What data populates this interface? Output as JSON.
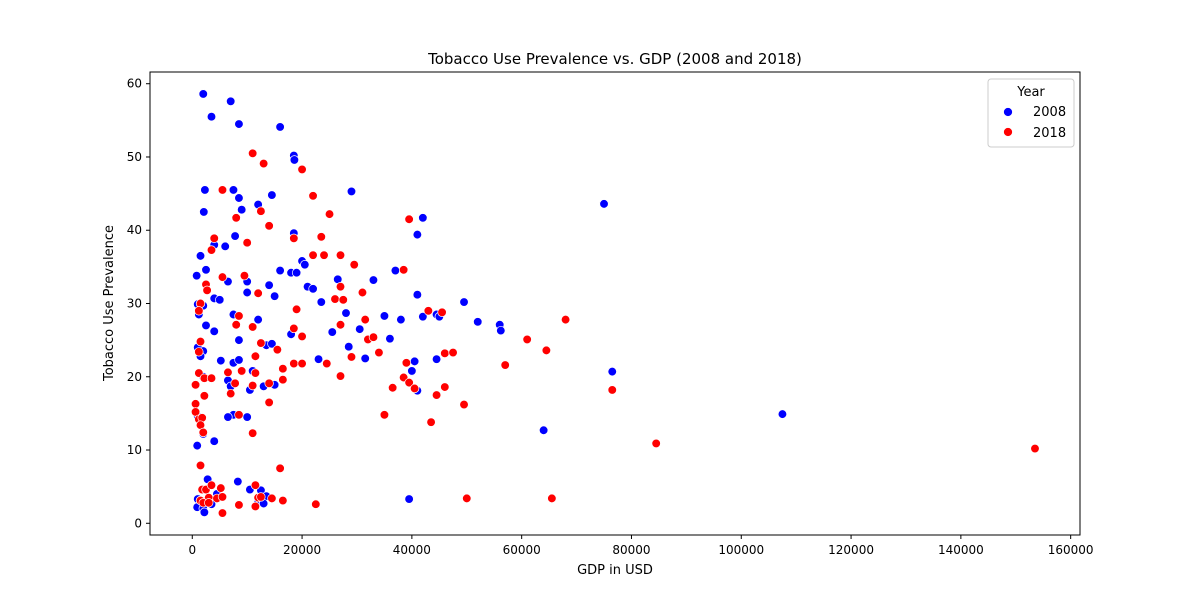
{
  "chart_data": {
    "type": "scatter",
    "title": "Tobacco Use Prevalence vs. GDP (2008 and 2018)",
    "xlabel": "GDP in USD",
    "ylabel": "Tobacco Use Prevalence",
    "xlim": [
      -7700,
      161700
    ],
    "ylim": [
      -1.6,
      61.6
    ],
    "xticks": [
      0,
      20000,
      40000,
      60000,
      80000,
      100000,
      120000,
      140000,
      160000
    ],
    "yticks": [
      0,
      10,
      20,
      30,
      40,
      50,
      60
    ],
    "grid": false,
    "legend": {
      "title": "Year",
      "placement": "top-right"
    },
    "series": [
      {
        "name": "2008",
        "color": "#0000ff",
        "points": [
          [
            2000,
            58.6
          ],
          [
            7000,
            57.6
          ],
          [
            3500,
            55.5
          ],
          [
            8500,
            54.5
          ],
          [
            16000,
            54.1
          ],
          [
            18500,
            50.2
          ],
          [
            18600,
            49.6
          ],
          [
            2300,
            45.5
          ],
          [
            7500,
            45.5
          ],
          [
            14500,
            44.8
          ],
          [
            8500,
            44.4
          ],
          [
            29000,
            45.3
          ],
          [
            12000,
            43.5
          ],
          [
            2100,
            42.5
          ],
          [
            9000,
            42.8
          ],
          [
            75000,
            43.6
          ],
          [
            42000,
            41.7
          ],
          [
            41000,
            39.4
          ],
          [
            18500,
            39.6
          ],
          [
            7800,
            39.2
          ],
          [
            4000,
            38.0
          ],
          [
            6000,
            37.8
          ],
          [
            1500,
            36.5
          ],
          [
            20000,
            35.8
          ],
          [
            20500,
            35.3
          ],
          [
            2500,
            34.6
          ],
          [
            16000,
            34.5
          ],
          [
            37000,
            34.5
          ],
          [
            800,
            33.8
          ],
          [
            6500,
            33.0
          ],
          [
            26500,
            33.3
          ],
          [
            33000,
            33.2
          ],
          [
            18000,
            34.2
          ],
          [
            19000,
            34.2
          ],
          [
            10000,
            33.0
          ],
          [
            14000,
            32.5
          ],
          [
            21000,
            32.3
          ],
          [
            22000,
            32.0
          ],
          [
            10000,
            31.5
          ],
          [
            15000,
            31.0
          ],
          [
            41000,
            31.2
          ],
          [
            4000,
            30.7
          ],
          [
            5000,
            30.5
          ],
          [
            23500,
            30.2
          ],
          [
            49500,
            30.2
          ],
          [
            1000,
            29.9
          ],
          [
            2000,
            29.7
          ],
          [
            1200,
            28.5
          ],
          [
            7500,
            28.5
          ],
          [
            28000,
            28.7
          ],
          [
            35000,
            28.3
          ],
          [
            38000,
            27.8
          ],
          [
            42000,
            28.2
          ],
          [
            44500,
            28.5
          ],
          [
            45000,
            28.2
          ],
          [
            52000,
            27.5
          ],
          [
            56000,
            27.1
          ],
          [
            56200,
            26.3
          ],
          [
            2500,
            27.0
          ],
          [
            4000,
            26.2
          ],
          [
            12000,
            27.8
          ],
          [
            18000,
            25.8
          ],
          [
            25500,
            26.1
          ],
          [
            30500,
            26.5
          ],
          [
            36000,
            25.2
          ],
          [
            8500,
            25.0
          ],
          [
            13500,
            24.3
          ],
          [
            1000,
            24.0
          ],
          [
            2000,
            23.5
          ],
          [
            5200,
            22.2
          ],
          [
            7500,
            21.9
          ],
          [
            8500,
            22.3
          ],
          [
            14500,
            24.5
          ],
          [
            23000,
            22.4
          ],
          [
            28500,
            24.1
          ],
          [
            31500,
            22.5
          ],
          [
            40500,
            22.1
          ],
          [
            44500,
            22.4
          ],
          [
            76500,
            20.7
          ],
          [
            1500,
            22.8
          ],
          [
            11000,
            20.8
          ],
          [
            2000,
            20.0
          ],
          [
            6500,
            19.5
          ],
          [
            7000,
            18.7
          ],
          [
            13000,
            18.7
          ],
          [
            15000,
            18.9
          ],
          [
            10500,
            18.2
          ],
          [
            40000,
            20.8
          ],
          [
            41000,
            18.1
          ],
          [
            7500,
            14.8
          ],
          [
            10000,
            14.5
          ],
          [
            6500,
            14.5
          ],
          [
            1000,
            14.6
          ],
          [
            900,
            10.6
          ],
          [
            4000,
            11.2
          ],
          [
            64000,
            12.7
          ],
          [
            107500,
            14.9
          ],
          [
            2000,
            12.2
          ],
          [
            2800,
            6.0
          ],
          [
            8300,
            5.7
          ],
          [
            10500,
            4.6
          ],
          [
            12500,
            4.5
          ],
          [
            1000,
            3.3
          ],
          [
            1500,
            3.1
          ],
          [
            4500,
            4.0
          ],
          [
            12000,
            3.2
          ],
          [
            13500,
            3.7
          ],
          [
            39500,
            3.3
          ],
          [
            900,
            2.2
          ],
          [
            2000,
            2.0
          ],
          [
            2200,
            1.5
          ],
          [
            3500,
            2.6
          ],
          [
            12000,
            2.8
          ],
          [
            13000,
            2.7
          ]
        ]
      },
      {
        "name": "2018",
        "color": "#ff0000",
        "points": [
          [
            11000,
            50.5
          ],
          [
            13000,
            49.1
          ],
          [
            20000,
            48.3
          ],
          [
            5500,
            45.5
          ],
          [
            22000,
            44.7
          ],
          [
            12500,
            42.6
          ],
          [
            25000,
            42.2
          ],
          [
            8000,
            41.7
          ],
          [
            39500,
            41.5
          ],
          [
            14000,
            40.6
          ],
          [
            23500,
            39.1
          ],
          [
            18500,
            38.9
          ],
          [
            4000,
            38.9
          ],
          [
            10000,
            38.3
          ],
          [
            3500,
            37.3
          ],
          [
            24000,
            36.6
          ],
          [
            22000,
            36.6
          ],
          [
            27000,
            36.6
          ],
          [
            29500,
            35.3
          ],
          [
            38500,
            34.6
          ],
          [
            9500,
            33.8
          ],
          [
            5500,
            33.6
          ],
          [
            2500,
            32.6
          ],
          [
            2700,
            31.8
          ],
          [
            12000,
            31.4
          ],
          [
            27000,
            32.3
          ],
          [
            31000,
            31.5
          ],
          [
            1500,
            30.0
          ],
          [
            19000,
            29.2
          ],
          [
            26000,
            30.6
          ],
          [
            27500,
            30.5
          ],
          [
            1200,
            29.0
          ],
          [
            8500,
            28.3
          ],
          [
            43000,
            29.0
          ],
          [
            45500,
            28.8
          ],
          [
            68000,
            27.8
          ],
          [
            8000,
            27.1
          ],
          [
            11000,
            26.8
          ],
          [
            18500,
            26.6
          ],
          [
            27000,
            27.1
          ],
          [
            31500,
            27.8
          ],
          [
            20000,
            25.5
          ],
          [
            32000,
            25.1
          ],
          [
            33000,
            25.4
          ],
          [
            61000,
            25.1
          ],
          [
            1500,
            24.8
          ],
          [
            12500,
            24.6
          ],
          [
            15500,
            23.7
          ],
          [
            29000,
            22.7
          ],
          [
            34000,
            23.3
          ],
          [
            1200,
            23.4
          ],
          [
            46000,
            23.2
          ],
          [
            47500,
            23.3
          ],
          [
            64500,
            23.6
          ],
          [
            11500,
            22.8
          ],
          [
            18500,
            21.8
          ],
          [
            20000,
            21.8
          ],
          [
            24500,
            21.8
          ],
          [
            39000,
            21.9
          ],
          [
            57000,
            21.6
          ],
          [
            9000,
            20.8
          ],
          [
            11500,
            20.5
          ],
          [
            16500,
            21.1
          ],
          [
            1200,
            20.5
          ],
          [
            2200,
            19.8
          ],
          [
            3500,
            19.8
          ],
          [
            6500,
            20.6
          ],
          [
            7800,
            19.1
          ],
          [
            16500,
            19.6
          ],
          [
            27000,
            20.1
          ],
          [
            38500,
            19.9
          ],
          [
            39500,
            19.2
          ],
          [
            600,
            18.9
          ],
          [
            11000,
            18.8
          ],
          [
            14000,
            19.1
          ],
          [
            36500,
            18.5
          ],
          [
            46000,
            18.6
          ],
          [
            40500,
            18.4
          ],
          [
            76500,
            18.2
          ],
          [
            2200,
            17.4
          ],
          [
            7000,
            17.7
          ],
          [
            44500,
            17.5
          ],
          [
            14000,
            16.5
          ],
          [
            600,
            16.3
          ],
          [
            49500,
            16.2
          ],
          [
            600,
            15.2
          ],
          [
            8500,
            14.8
          ],
          [
            35000,
            14.8
          ],
          [
            1200,
            14.2
          ],
          [
            1800,
            14.4
          ],
          [
            1500,
            13.4
          ],
          [
            43500,
            13.8
          ],
          [
            11000,
            12.3
          ],
          [
            2000,
            12.4
          ],
          [
            84500,
            10.9
          ],
          [
            153500,
            10.2
          ],
          [
            1500,
            7.9
          ],
          [
            16000,
            7.5
          ],
          [
            1800,
            4.6
          ],
          [
            2500,
            4.6
          ],
          [
            3500,
            5.2
          ],
          [
            5200,
            4.8
          ],
          [
            11500,
            5.2
          ],
          [
            3000,
            3.5
          ],
          [
            4500,
            3.4
          ],
          [
            5500,
            3.6
          ],
          [
            12000,
            3.5
          ],
          [
            12500,
            3.6
          ],
          [
            14500,
            3.4
          ],
          [
            16500,
            3.1
          ],
          [
            50000,
            3.4
          ],
          [
            65500,
            3.4
          ],
          [
            1500,
            3.1
          ],
          [
            2000,
            2.8
          ],
          [
            3000,
            2.8
          ],
          [
            8500,
            2.5
          ],
          [
            11500,
            2.3
          ],
          [
            22500,
            2.6
          ],
          [
            5500,
            1.4
          ]
        ]
      }
    ]
  }
}
